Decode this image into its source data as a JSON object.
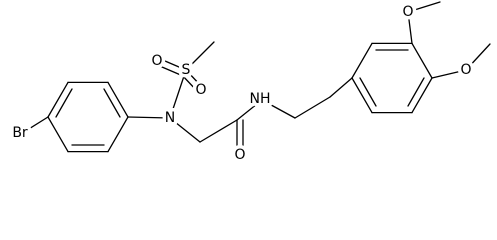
{
  "atoms": [
    {
      "label": "Br"
    },
    {
      "label": "N"
    },
    {
      "label": "S"
    },
    {
      "label": "O"
    },
    {
      "label": "O"
    },
    {
      "label": "O"
    },
    {
      "label": "NH"
    },
    {
      "label": "O"
    },
    {
      "label": "O"
    }
  ]
}
